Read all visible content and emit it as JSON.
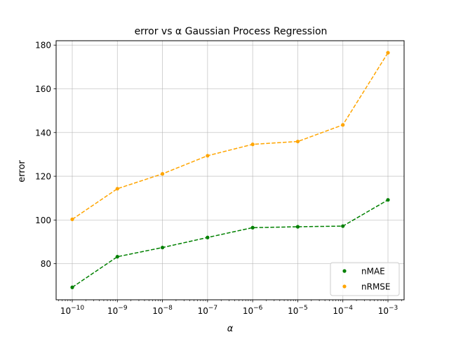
{
  "chart_data": {
    "type": "line",
    "title": "error vs α Gaussian Process Regression",
    "xlabel": "α",
    "ylabel": "error",
    "x_scale": "log",
    "x": [
      1e-10,
      1e-09,
      1e-08,
      1e-07,
      1e-06,
      1e-05,
      0.0001,
      0.001
    ],
    "x_tick_labels": [
      "10",
      "10",
      "10",
      "10",
      "10",
      "10",
      "10",
      "10"
    ],
    "x_tick_exponents": [
      "−10",
      "−9",
      "−8",
      "−7",
      "−6",
      "−5",
      "−4",
      "−3"
    ],
    "ylim": [
      63.5,
      182
    ],
    "y_ticks": [
      80,
      100,
      120,
      140,
      160,
      180
    ],
    "grid": true,
    "legend_position": "lower-right",
    "series": [
      {
        "name": "nMAE",
        "color": "#008000",
        "values": [
          69.2,
          83.2,
          87.4,
          92.0,
          96.5,
          96.9,
          97.2,
          109.2
        ]
      },
      {
        "name": "nRMSE",
        "color": "#FFA500",
        "values": [
          100.3,
          114.3,
          121.1,
          129.4,
          134.6,
          135.9,
          143.5,
          176.5
        ]
      }
    ]
  }
}
